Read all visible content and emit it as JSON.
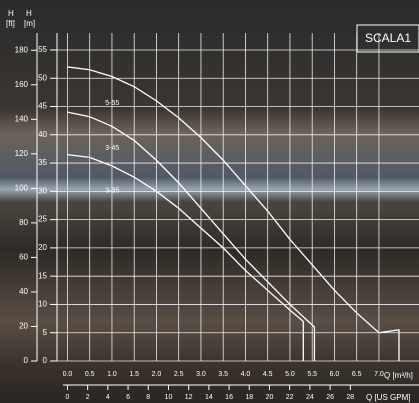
{
  "chart_data": {
    "type": "line",
    "title": "SCALA1",
    "x_label": "Q [m³/h]",
    "x2_label": "Q [US GPM]",
    "y_label": "H",
    "y_unit": "[m]",
    "y2_label": "H",
    "y2_unit": "[ft]",
    "xlim": [
      -0.1,
      7.9
    ],
    "xticks": [
      {
        "value": 0,
        "label": "0.0"
      },
      0.5,
      {
        "value": 1,
        "label": "1.0"
      },
      1.5,
      {
        "value": 2,
        "label": "2.0"
      },
      2.5,
      {
        "value": 3,
        "label": "3.0"
      },
      3.5,
      {
        "value": 4,
        "label": "4.0"
      },
      4.5,
      {
        "value": 5,
        "label": "5.0"
      },
      5.5,
      {
        "value": 6,
        "label": "6.0"
      },
      6.5,
      {
        "value": 7,
        "label": "7.0"
      }
    ],
    "x2lim": [
      -0.44,
      34.8
    ],
    "x2ticks": [
      0,
      2,
      4,
      6,
      8,
      10,
      12,
      14,
      16,
      18,
      20,
      22,
      24,
      26,
      28
    ],
    "ylim": [
      0,
      58
    ],
    "yticks": [
      0,
      5,
      10,
      15,
      20,
      25,
      30,
      35,
      40,
      45,
      50,
      55
    ],
    "y2lim": [
      0,
      190
    ],
    "y2ticks": [
      0,
      20,
      40,
      60,
      80,
      100,
      120,
      140,
      160,
      180
    ],
    "grid": true,
    "series": [
      {
        "name": "5-55",
        "color": "#ffffff",
        "x": [
          0,
          0.5,
          1,
          1.5,
          2,
          2.5,
          3,
          3.5,
          4,
          4.5,
          5,
          5.5,
          6,
          6.5,
          7,
          7.45,
          7.45
        ],
        "values": [
          52,
          51.5,
          50.3,
          48.5,
          46,
          43,
          39.5,
          35.5,
          31,
          26.5,
          21.5,
          17,
          12.5,
          8.5,
          5,
          5.5,
          0
        ]
      },
      {
        "name": "3-45",
        "color": "#ffffff",
        "x": [
          0,
          0.5,
          1,
          1.5,
          2,
          2.5,
          3,
          3.5,
          4,
          4.5,
          5,
          5.55,
          5.55
        ],
        "values": [
          44,
          43.2,
          41.5,
          39,
          35.5,
          31.5,
          27,
          22.5,
          18,
          14,
          10,
          6,
          0
        ]
      },
      {
        "name": "3-35",
        "color": "#ffffff",
        "x": [
          0,
          0.5,
          1,
          1.5,
          2,
          2.5,
          3,
          3.5,
          4,
          4.5,
          5,
          5.3,
          5.3
        ],
        "values": [
          36.5,
          36,
          34.5,
          32.5,
          30,
          27,
          23.5,
          20,
          16,
          12.5,
          9,
          7,
          0
        ]
      }
    ]
  }
}
